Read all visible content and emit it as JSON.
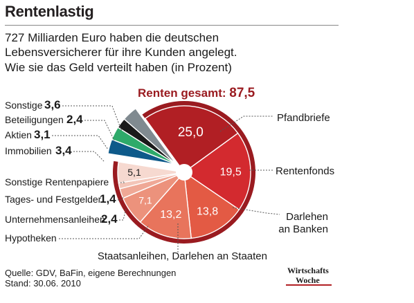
{
  "title": "Rentenlastig",
  "subtitle_lines": [
    "727 Milliarden Euro haben die deutschen",
    "Lebensversicherer für ihre Kunden angelegt.",
    "Wie sie das Geld verteilt haben (in Prozent)"
  ],
  "source": "Quelle: GDV, BaFin, eigene Berechnungen",
  "date": "Stand:  30.06. 2010",
  "logo": {
    "line1": "Wirtschafts",
    "line2": "Woche"
  },
  "colors": {
    "accent_dark_red": "#9a1b20",
    "pfandbriefe": "#b11f24",
    "rentenfonds": "#d32a2f",
    "darlehen_banken": "#e35a44",
    "staatsanleihen": "#e8745c",
    "hypotheken": "#ec927c",
    "unternehmensanleihen": "#efa896",
    "tagesgeld": "#f3c5b8",
    "sonstige_renten": "#f6d9d0",
    "immobilien": "#0e5a8a",
    "aktien": "#2eaa6a",
    "beteiligungen": "#1a1a1a",
    "sonstige": "#808a90"
  },
  "chart_data": {
    "type": "pie",
    "title": "Renten gesamt:",
    "total_label": "Renten gesamt:",
    "total_value": "87,5",
    "slices": [
      {
        "name": "Pfandbriefe",
        "value": 25.0,
        "label": "25,0",
        "group": "renten"
      },
      {
        "name": "Rentenfonds",
        "value": 19.5,
        "label": "19,5",
        "group": "renten"
      },
      {
        "name": "Darlehen an Banken",
        "value": 13.8,
        "label": "13,8",
        "group": "renten"
      },
      {
        "name": "Staatsanleihen, Darlehen an Staaten",
        "value": 13.2,
        "label": "13,2",
        "group": "renten"
      },
      {
        "name": "Hypotheken",
        "value": 7.1,
        "label": "7,1",
        "group": "renten"
      },
      {
        "name": "Unternehmensanleihen",
        "value": 2.4,
        "label": "2,4",
        "group": "renten"
      },
      {
        "name": "Tages- und Festgelder",
        "value": 1.4,
        "label": "1,4",
        "group": "renten"
      },
      {
        "name": "Sonstige Rentenpapiere",
        "value": 5.1,
        "label": "5,1",
        "group": "renten"
      },
      {
        "name": "Immobilien",
        "value": 3.4,
        "label": "3,4",
        "group": "other"
      },
      {
        "name": "Aktien",
        "value": 3.1,
        "label": "3,1",
        "group": "other"
      },
      {
        "name": "Beteiligungen",
        "value": 2.4,
        "label": "2,4",
        "group": "other"
      },
      {
        "name": "Sonstige",
        "value": 3.6,
        "label": "3,6",
        "group": "other"
      }
    ]
  }
}
